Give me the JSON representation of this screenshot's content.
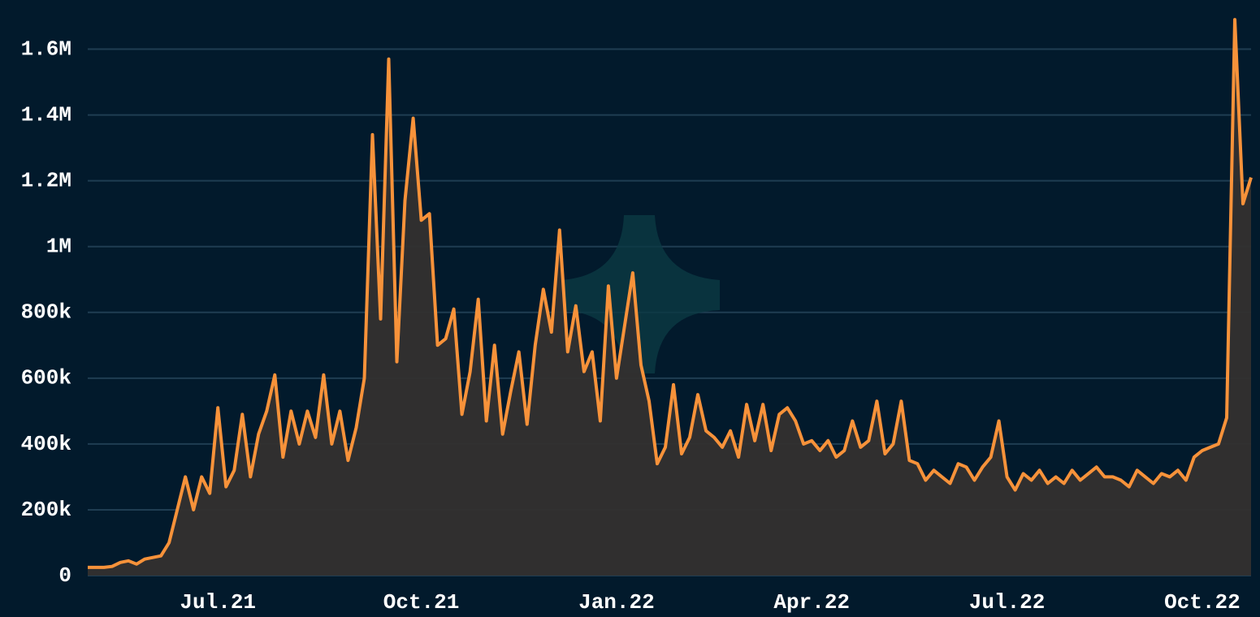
{
  "chart_data": {
    "type": "area",
    "categories": [
      null,
      null,
      null,
      null,
      null,
      null,
      null,
      null,
      null,
      null,
      null,
      null,
      null,
      null,
      null,
      null,
      "Jul.21",
      null,
      null,
      null,
      null,
      null,
      null,
      null,
      null,
      null,
      null,
      null,
      null,
      null,
      null,
      null,
      null,
      null,
      null,
      null,
      null,
      null,
      null,
      null,
      null,
      "Oct.21",
      null,
      null,
      null,
      null,
      null,
      null,
      null,
      null,
      null,
      null,
      null,
      null,
      null,
      null,
      null,
      null,
      null,
      null,
      null,
      null,
      null,
      null,
      null,
      "Jan.22",
      null,
      null,
      null,
      null,
      null,
      null,
      null,
      null,
      null,
      null,
      null,
      null,
      null,
      null,
      null,
      null,
      null,
      null,
      null,
      null,
      null,
      null,
      null,
      "Apr.22",
      null,
      null,
      null,
      null,
      null,
      null,
      null,
      null,
      null,
      null,
      null,
      null,
      null,
      null,
      null,
      null,
      null,
      null,
      null,
      null,
      null,
      null,
      null,
      "Jul.22",
      null,
      null,
      null,
      null,
      null,
      null,
      null,
      null,
      null,
      null,
      null,
      null,
      null,
      null,
      null,
      null,
      null,
      null,
      null,
      null,
      null,
      null,
      null,
      "Oct.22",
      null,
      null,
      null,
      null,
      null,
      null
    ],
    "values": [
      25000,
      25000,
      25000,
      28000,
      40000,
      45000,
      35000,
      50000,
      55000,
      60000,
      100000,
      200000,
      300000,
      200000,
      300000,
      250000,
      510000,
      270000,
      320000,
      490000,
      300000,
      430000,
      500000,
      610000,
      360000,
      500000,
      400000,
      500000,
      420000,
      610000,
      400000,
      500000,
      350000,
      450000,
      600000,
      1340000,
      780000,
      1570000,
      650000,
      1140000,
      1390000,
      1080000,
      1100000,
      700000,
      720000,
      810000,
      490000,
      620000,
      840000,
      470000,
      700000,
      430000,
      560000,
      680000,
      460000,
      700000,
      870000,
      740000,
      1050000,
      680000,
      820000,
      620000,
      680000,
      470000,
      880000,
      600000,
      760000,
      920000,
      640000,
      530000,
      340000,
      390000,
      580000,
      370000,
      420000,
      550000,
      440000,
      420000,
      390000,
      440000,
      360000,
      520000,
      410000,
      520000,
      380000,
      490000,
      510000,
      470000,
      400000,
      410000,
      380000,
      410000,
      360000,
      380000,
      470000,
      390000,
      410000,
      530000,
      370000,
      400000,
      530000,
      350000,
      340000,
      290000,
      320000,
      300000,
      280000,
      340000,
      330000,
      290000,
      330000,
      360000,
      470000,
      300000,
      260000,
      310000,
      290000,
      320000,
      280000,
      300000,
      280000,
      320000,
      290000,
      310000,
      330000,
      300000,
      300000,
      290000,
      270000,
      320000,
      300000,
      280000,
      310000,
      300000,
      320000,
      290000,
      360000,
      380000,
      390000,
      400000,
      480000,
      1690000,
      1130000,
      1210000
    ],
    "color": "#f7923a",
    "fill": "#33302f",
    "ylim": [
      0,
      1700000
    ],
    "yticks": [
      0,
      {
        "value": 200000,
        "label": "200k"
      },
      {
        "value": 400000,
        "label": "400k"
      },
      {
        "value": 600000,
        "label": "600k"
      },
      {
        "value": 800000,
        "label": "800k"
      },
      {
        "value": 1000000,
        "label": "1M"
      },
      {
        "value": 1200000,
        "label": "1.2M"
      },
      {
        "value": 1400000,
        "label": "1.4M"
      },
      {
        "value": 1600000,
        "label": "1.6M"
      }
    ],
    "grid": true
  }
}
